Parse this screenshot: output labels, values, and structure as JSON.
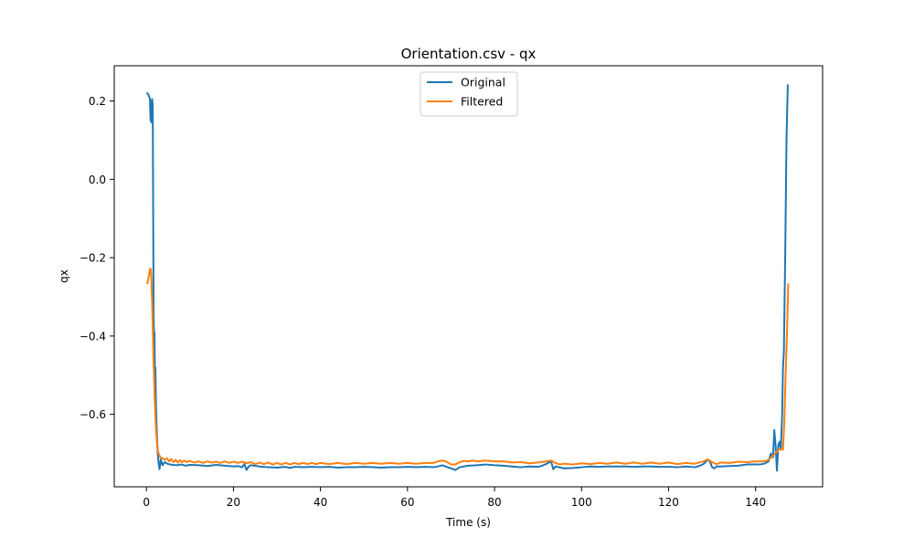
{
  "chart_data": {
    "type": "line",
    "title": "Orientation.csv - qx",
    "xlabel": "Time (s)",
    "ylabel": "qx",
    "xlim": [
      -7.4,
      155.4
    ],
    "ylim": [
      -0.785,
      0.29
    ],
    "xticks": [
      0,
      20,
      40,
      60,
      80,
      100,
      120,
      140
    ],
    "yticks": [
      -0.6,
      -0.4,
      -0.2,
      0.0,
      0.2
    ],
    "xtick_labels": [
      "0",
      "20",
      "40",
      "60",
      "80",
      "100",
      "120",
      "140"
    ],
    "ytick_labels": [
      "−0.6",
      "−0.4",
      "−0.2",
      "0.0",
      "0.2"
    ],
    "grid": false,
    "legend_position": "top-center",
    "series": [
      {
        "name": "Original",
        "color": "#1f77b4",
        "points": [
          [
            0.2,
            0.22
          ],
          [
            0.5,
            0.215
          ],
          [
            0.8,
            0.205
          ],
          [
            0.95,
            0.15
          ],
          [
            1.05,
            0.2
          ],
          [
            1.15,
            0.145
          ],
          [
            1.3,
            0.205
          ],
          [
            1.45,
            0.19
          ],
          [
            1.55,
            -0.1
          ],
          [
            1.65,
            -0.35
          ],
          [
            1.75,
            -0.4
          ],
          [
            1.85,
            -0.39
          ],
          [
            1.95,
            -0.5
          ],
          [
            2.05,
            -0.48
          ],
          [
            2.2,
            -0.58
          ],
          [
            2.4,
            -0.65
          ],
          [
            2.6,
            -0.7
          ],
          [
            2.8,
            -0.725
          ],
          [
            3.0,
            -0.74
          ],
          [
            3.3,
            -0.715
          ],
          [
            3.7,
            -0.73
          ],
          [
            4.2,
            -0.722
          ],
          [
            5.0,
            -0.727
          ],
          [
            6.0,
            -0.729
          ],
          [
            7.0,
            -0.73
          ],
          [
            8.0,
            -0.728
          ],
          [
            9.0,
            -0.731
          ],
          [
            10.0,
            -0.729
          ],
          [
            12.0,
            -0.73
          ],
          [
            14.0,
            -0.732
          ],
          [
            16.0,
            -0.729
          ],
          [
            18.0,
            -0.731
          ],
          [
            20.0,
            -0.733
          ],
          [
            21.0,
            -0.732
          ],
          [
            22.0,
            -0.735
          ],
          [
            22.5,
            -0.727
          ],
          [
            23.0,
            -0.742
          ],
          [
            23.5,
            -0.733
          ],
          [
            24.0,
            -0.73
          ],
          [
            26.0,
            -0.733
          ],
          [
            28.0,
            -0.735
          ],
          [
            30.0,
            -0.736
          ],
          [
            32.0,
            -0.734
          ],
          [
            33.0,
            -0.737
          ],
          [
            34.0,
            -0.734
          ],
          [
            36.0,
            -0.735
          ],
          [
            38.0,
            -0.734
          ],
          [
            40.0,
            -0.735
          ],
          [
            42.0,
            -0.734
          ],
          [
            44.0,
            -0.736
          ],
          [
            46.0,
            -0.735
          ],
          [
            48.0,
            -0.735
          ],
          [
            50.0,
            -0.734
          ],
          [
            52.0,
            -0.735
          ],
          [
            54.0,
            -0.736
          ],
          [
            56.0,
            -0.735
          ],
          [
            58.0,
            -0.735
          ],
          [
            60.0,
            -0.734
          ],
          [
            62.0,
            -0.735
          ],
          [
            64.0,
            -0.734
          ],
          [
            66.0,
            -0.735
          ],
          [
            67.0,
            -0.733
          ],
          [
            68.0,
            -0.73
          ],
          [
            69.0,
            -0.734
          ],
          [
            70.0,
            -0.738
          ],
          [
            71.0,
            -0.742
          ],
          [
            72.0,
            -0.735
          ],
          [
            74.0,
            -0.731
          ],
          [
            76.0,
            -0.73
          ],
          [
            78.0,
            -0.728
          ],
          [
            80.0,
            -0.73
          ],
          [
            82.0,
            -0.731
          ],
          [
            84.0,
            -0.733
          ],
          [
            86.0,
            -0.735
          ],
          [
            88.0,
            -0.733
          ],
          [
            90.0,
            -0.734
          ],
          [
            91.0,
            -0.731
          ],
          [
            92.0,
            -0.726
          ],
          [
            93.0,
            -0.72
          ],
          [
            93.5,
            -0.74
          ],
          [
            94.0,
            -0.733
          ],
          [
            96.0,
            -0.738
          ],
          [
            98.0,
            -0.737
          ],
          [
            100.0,
            -0.735
          ],
          [
            102.0,
            -0.733
          ],
          [
            104.0,
            -0.734
          ],
          [
            106.0,
            -0.733
          ],
          [
            108.0,
            -0.733
          ],
          [
            110.0,
            -0.733
          ],
          [
            112.0,
            -0.734
          ],
          [
            114.0,
            -0.733
          ],
          [
            116.0,
            -0.733
          ],
          [
            118.0,
            -0.734
          ],
          [
            120.0,
            -0.734
          ],
          [
            122.0,
            -0.735
          ],
          [
            124.0,
            -0.733
          ],
          [
            126.0,
            -0.735
          ],
          [
            127.0,
            -0.732
          ],
          [
            128.0,
            -0.727
          ],
          [
            129.0,
            -0.716
          ],
          [
            129.5,
            -0.72
          ],
          [
            130.0,
            -0.735
          ],
          [
            130.5,
            -0.738
          ],
          [
            131.0,
            -0.733
          ],
          [
            132.0,
            -0.733
          ],
          [
            134.0,
            -0.732
          ],
          [
            136.0,
            -0.731
          ],
          [
            138.0,
            -0.728
          ],
          [
            140.0,
            -0.728
          ],
          [
            141.0,
            -0.728
          ],
          [
            142.0,
            -0.726
          ],
          [
            143.0,
            -0.72
          ],
          [
            143.5,
            -0.7
          ],
          [
            144.0,
            -0.71
          ],
          [
            144.3,
            -0.64
          ],
          [
            144.6,
            -0.68
          ],
          [
            144.9,
            -0.744
          ],
          [
            145.2,
            -0.68
          ],
          [
            145.5,
            -0.67
          ],
          [
            145.8,
            -0.69
          ],
          [
            146.1,
            -0.6
          ],
          [
            146.3,
            -0.48
          ],
          [
            146.5,
            -0.44
          ],
          [
            146.8,
            -0.2
          ],
          [
            147.1,
            0.1
          ],
          [
            147.4,
            0.24
          ]
        ]
      },
      {
        "name": "Filtered",
        "color": "#ff7f0e",
        "points": [
          [
            0.2,
            -0.265
          ],
          [
            0.5,
            -0.25
          ],
          [
            0.7,
            -0.235
          ],
          [
            0.85,
            -0.228
          ],
          [
            1.0,
            -0.23
          ],
          [
            1.15,
            -0.26
          ],
          [
            1.35,
            -0.33
          ],
          [
            1.6,
            -0.45
          ],
          [
            1.9,
            -0.56
          ],
          [
            2.2,
            -0.64
          ],
          [
            2.5,
            -0.685
          ],
          [
            2.8,
            -0.7
          ],
          [
            3.2,
            -0.71
          ],
          [
            3.7,
            -0.712
          ],
          [
            4.2,
            -0.716
          ],
          [
            4.7,
            -0.712
          ],
          [
            5.2,
            -0.72
          ],
          [
            5.7,
            -0.714
          ],
          [
            6.2,
            -0.722
          ],
          [
            6.7,
            -0.716
          ],
          [
            7.2,
            -0.723
          ],
          [
            7.7,
            -0.717
          ],
          [
            8.2,
            -0.722
          ],
          [
            8.7,
            -0.718
          ],
          [
            9.2,
            -0.722
          ],
          [
            10.0,
            -0.719
          ],
          [
            11.0,
            -0.723
          ],
          [
            12.0,
            -0.72
          ],
          [
            13.0,
            -0.724
          ],
          [
            14.0,
            -0.72
          ],
          [
            15.0,
            -0.723
          ],
          [
            16.0,
            -0.721
          ],
          [
            17.0,
            -0.724
          ],
          [
            18.0,
            -0.72
          ],
          [
            19.0,
            -0.724
          ],
          [
            20.0,
            -0.721
          ],
          [
            21.0,
            -0.724
          ],
          [
            22.0,
            -0.721
          ],
          [
            23.0,
            -0.725
          ],
          [
            24.0,
            -0.722
          ],
          [
            25.0,
            -0.727
          ],
          [
            26.0,
            -0.723
          ],
          [
            27.0,
            -0.727
          ],
          [
            28.0,
            -0.723
          ],
          [
            29.0,
            -0.728
          ],
          [
            30.0,
            -0.724
          ],
          [
            31.0,
            -0.728
          ],
          [
            32.0,
            -0.724
          ],
          [
            33.0,
            -0.728
          ],
          [
            34.0,
            -0.724
          ],
          [
            35.0,
            -0.727
          ],
          [
            36.0,
            -0.724
          ],
          [
            37.0,
            -0.727
          ],
          [
            38.0,
            -0.724
          ],
          [
            39.0,
            -0.727
          ],
          [
            40.0,
            -0.724
          ],
          [
            42.0,
            -0.727
          ],
          [
            44.0,
            -0.724
          ],
          [
            46.0,
            -0.727
          ],
          [
            48.0,
            -0.724
          ],
          [
            50.0,
            -0.726
          ],
          [
            52.0,
            -0.724
          ],
          [
            54.0,
            -0.726
          ],
          [
            56.0,
            -0.724
          ],
          [
            58.0,
            -0.726
          ],
          [
            60.0,
            -0.724
          ],
          [
            62.0,
            -0.726
          ],
          [
            64.0,
            -0.724
          ],
          [
            66.0,
            -0.724
          ],
          [
            67.0,
            -0.72
          ],
          [
            68.0,
            -0.718
          ],
          [
            69.0,
            -0.721
          ],
          [
            70.0,
            -0.728
          ],
          [
            71.0,
            -0.728
          ],
          [
            72.0,
            -0.722
          ],
          [
            73.0,
            -0.719
          ],
          [
            74.0,
            -0.72
          ],
          [
            75.0,
            -0.718
          ],
          [
            76.0,
            -0.72
          ],
          [
            78.0,
            -0.718
          ],
          [
            80.0,
            -0.72
          ],
          [
            82.0,
            -0.72
          ],
          [
            84.0,
            -0.723
          ],
          [
            86.0,
            -0.722
          ],
          [
            88.0,
            -0.725
          ],
          [
            90.0,
            -0.723
          ],
          [
            92.0,
            -0.72
          ],
          [
            93.0,
            -0.718
          ],
          [
            94.0,
            -0.724
          ],
          [
            95.0,
            -0.728
          ],
          [
            96.0,
            -0.726
          ],
          [
            98.0,
            -0.728
          ],
          [
            100.0,
            -0.725
          ],
          [
            102.0,
            -0.727
          ],
          [
            104.0,
            -0.724
          ],
          [
            106.0,
            -0.726
          ],
          [
            108.0,
            -0.723
          ],
          [
            110.0,
            -0.726
          ],
          [
            112.0,
            -0.723
          ],
          [
            114.0,
            -0.726
          ],
          [
            116.0,
            -0.723
          ],
          [
            118.0,
            -0.726
          ],
          [
            120.0,
            -0.723
          ],
          [
            122.0,
            -0.727
          ],
          [
            124.0,
            -0.724
          ],
          [
            126.0,
            -0.726
          ],
          [
            127.0,
            -0.723
          ],
          [
            128.0,
            -0.72
          ],
          [
            129.0,
            -0.715
          ],
          [
            130.0,
            -0.722
          ],
          [
            131.0,
            -0.727
          ],
          [
            132.0,
            -0.723
          ],
          [
            134.0,
            -0.724
          ],
          [
            136.0,
            -0.721
          ],
          [
            138.0,
            -0.722
          ],
          [
            140.0,
            -0.72
          ],
          [
            142.0,
            -0.72
          ],
          [
            143.0,
            -0.716
          ],
          [
            144.0,
            -0.705
          ],
          [
            144.5,
            -0.7
          ],
          [
            145.0,
            -0.695
          ],
          [
            145.5,
            -0.688
          ],
          [
            146.0,
            -0.69
          ],
          [
            146.3,
            -0.69
          ],
          [
            146.6,
            -0.62
          ],
          [
            146.9,
            -0.5
          ],
          [
            147.2,
            -0.4
          ],
          [
            147.5,
            -0.268
          ]
        ]
      }
    ]
  }
}
